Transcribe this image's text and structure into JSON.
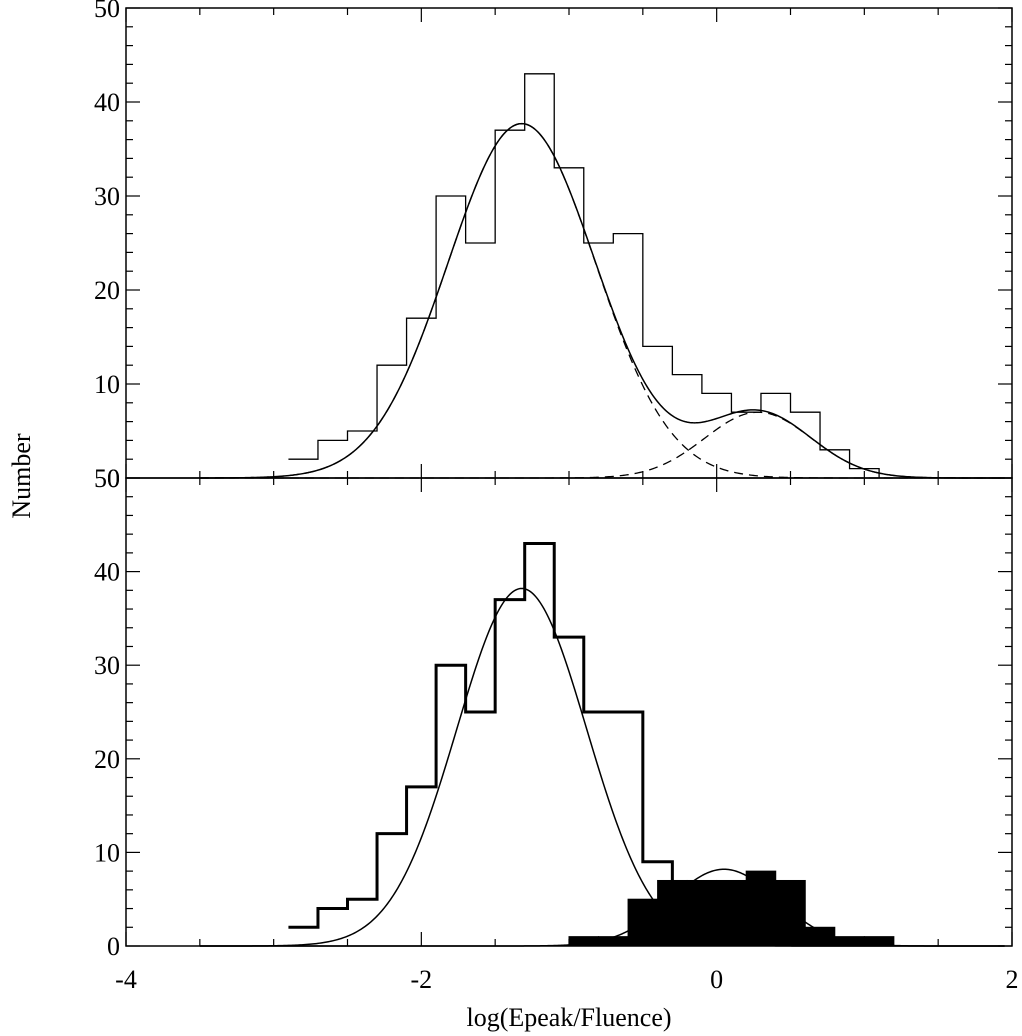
{
  "chart_data": [
    {
      "panel": "top",
      "type": "histogram",
      "xlabel": "",
      "ylabel": "Number",
      "xlim": [
        -4,
        2
      ],
      "ylim": [
        0,
        50
      ],
      "yticks": [
        0,
        10,
        20,
        30,
        40,
        50
      ],
      "bin_width": 0.2,
      "histogram": {
        "bin_starts": [
          -2.9,
          -2.7,
          -2.5,
          -2.3,
          -2.1,
          -1.9,
          -1.7,
          -1.5,
          -1.3,
          -1.1,
          -0.9,
          -0.7,
          -0.5,
          -0.3,
          -0.1,
          0.1,
          0.3,
          0.5,
          0.7,
          0.9
        ],
        "counts": [
          2,
          4,
          5,
          12,
          17,
          30,
          25,
          37,
          43,
          33,
          25,
          26,
          14,
          11,
          9,
          7,
          9,
          7,
          3,
          1
        ]
      },
      "components": [
        {
          "style": "dashed",
          "mean": -1.32,
          "sigma": 0.5,
          "amplitude": 37.7
        },
        {
          "style": "dashed",
          "mean": 0.28,
          "sigma": 0.36,
          "amplitude": 7
        }
      ],
      "sum_curve": {
        "style": "solid"
      }
    },
    {
      "panel": "bottom",
      "type": "histogram",
      "xlabel": "log(Epeak/Fluence)",
      "ylabel": "Number",
      "xlim": [
        -4,
        2
      ],
      "ylim": [
        0,
        50
      ],
      "xticks": [
        -4,
        -2,
        0,
        2
      ],
      "yticks": [
        0,
        10,
        20,
        30,
        40,
        50
      ],
      "bin_width": 0.2,
      "histogram": {
        "style": "thick outline",
        "bin_starts": [
          -2.9,
          -2.7,
          -2.5,
          -2.3,
          -2.1,
          -1.9,
          -1.7,
          -1.5,
          -1.3,
          -1.1,
          -0.9,
          -0.7,
          -0.5
        ],
        "counts": [
          2,
          4,
          5,
          12,
          17,
          30,
          25,
          37,
          43,
          33,
          25,
          25,
          9
        ]
      },
      "filled_histogram": {
        "style": "filled black",
        "bin_starts": [
          -1.0,
          -0.8,
          -0.6,
          -0.4,
          -0.2,
          0.0,
          0.2,
          0.4,
          0.6,
          0.8,
          1.0
        ],
        "counts": [
          1,
          1,
          5,
          7,
          7,
          7,
          8,
          7,
          2,
          1,
          1
        ]
      },
      "fits": [
        {
          "style": "solid",
          "mean": -1.32,
          "sigma": 0.44,
          "amplitude": 38.2
        },
        {
          "style": "solid",
          "mean": 0.05,
          "sigma": 0.36,
          "amplitude": 8.2
        }
      ]
    }
  ]
}
